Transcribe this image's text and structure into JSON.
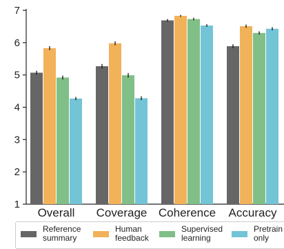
{
  "chart_data": {
    "type": "bar",
    "categories": [
      "Overall",
      "Coverage",
      "Coherence",
      "Accuracy"
    ],
    "ylim": [
      1,
      7
    ],
    "yticks": [
      1,
      2,
      3,
      4,
      5,
      6,
      7
    ],
    "grid": false,
    "legend_position": "bottom",
    "error_bars": true,
    "series": [
      {
        "name": "Reference\nsummary",
        "color": "#666666",
        "values": [
          5.07,
          5.27,
          6.69,
          5.89
        ],
        "errors": [
          0.06,
          0.07,
          0.04,
          0.06
        ]
      },
      {
        "name": "Human\nfeedback",
        "color": "#f2b25a",
        "values": [
          5.83,
          5.98,
          6.83,
          6.51
        ],
        "errors": [
          0.06,
          0.06,
          0.03,
          0.05
        ]
      },
      {
        "name": "Supervised\nlearning",
        "color": "#80bf87",
        "values": [
          4.92,
          4.99,
          6.73,
          6.3
        ],
        "errors": [
          0.06,
          0.07,
          0.04,
          0.05
        ]
      },
      {
        "name": "Pretrain\nonly",
        "color": "#73c4d6",
        "values": [
          4.27,
          4.28,
          6.53,
          6.43
        ],
        "errors": [
          0.05,
          0.06,
          0.04,
          0.05
        ]
      }
    ]
  }
}
